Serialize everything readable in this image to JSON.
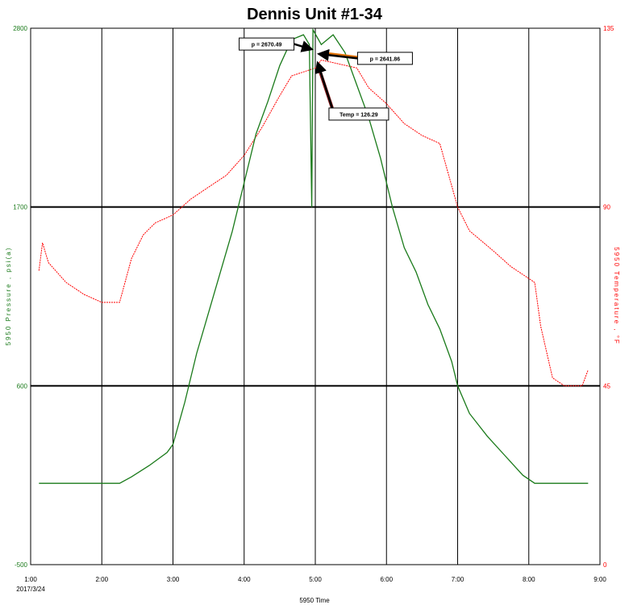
{
  "chart_data": {
    "type": "line",
    "title": "Dennis Unit #1-34",
    "xlabel": "5950 Time",
    "x_date_label": "2017/3/24",
    "y_left_label": "5950 Pressure , psi(a)",
    "y_right_label": "5950 Temperature , °F",
    "x_range": [
      "1:00",
      "9:00"
    ],
    "x_ticks": [
      "1:00",
      "2:00",
      "3:00",
      "4:00",
      "5:00",
      "6:00",
      "7:00",
      "8:00",
      "9:00"
    ],
    "y_left_range": [
      -500,
      2800
    ],
    "y_left_ticks": [
      "2800",
      "1700",
      "600",
      "-500"
    ],
    "y_right_range": [
      0,
      135
    ],
    "y_right_ticks": [
      "135",
      "90",
      "45",
      "0"
    ],
    "grid": true,
    "colors": {
      "pressure": "#1a7a1a",
      "temperature": "#ff0000",
      "annotation_arrow": "#e07000"
    },
    "series": [
      {
        "axis": "left",
        "points": [
          [
            "1:07",
            0
          ],
          [
            "2:15",
            0
          ],
          [
            "2:25",
            40
          ],
          [
            "2:40",
            110
          ],
          [
            "2:55",
            190
          ],
          [
            "3:00",
            240
          ],
          [
            "3:10",
            500
          ],
          [
            "3:20",
            800
          ],
          [
            "3:30",
            1050
          ],
          [
            "3:40",
            1300
          ],
          [
            "3:50",
            1550
          ],
          [
            "4:00",
            1850
          ],
          [
            "4:10",
            2150
          ],
          [
            "4:20",
            2350
          ],
          [
            "4:30",
            2570
          ],
          [
            "4:40",
            2730
          ],
          [
            "4:50",
            2760
          ],
          [
            "4:55",
            2700
          ],
          [
            "4:57",
            1700
          ],
          [
            "4:58",
            2790
          ],
          [
            "5:05",
            2700
          ],
          [
            "5:15",
            2760
          ],
          [
            "5:25",
            2650
          ],
          [
            "5:35",
            2450
          ],
          [
            "5:45",
            2250
          ],
          [
            "5:55",
            2000
          ],
          [
            "6:05",
            1700
          ],
          [
            "6:15",
            1450
          ],
          [
            "6:25",
            1300
          ],
          [
            "6:35",
            1100
          ],
          [
            "6:45",
            950
          ],
          [
            "6:55",
            750
          ],
          [
            "7:00",
            600
          ],
          [
            "7:10",
            430
          ],
          [
            "7:25",
            290
          ],
          [
            "7:40",
            170
          ],
          [
            "7:55",
            50
          ],
          [
            "8:05",
            0
          ],
          [
            "8:50",
            0
          ]
        ]
      },
      {
        "axis": "right",
        "points": [
          [
            "1:07",
            74
          ],
          [
            "1:10",
            81
          ],
          [
            "1:15",
            76
          ],
          [
            "1:30",
            71
          ],
          [
            "1:45",
            68
          ],
          [
            "2:00",
            66
          ],
          [
            "2:15",
            66
          ],
          [
            "2:25",
            77
          ],
          [
            "2:35",
            83
          ],
          [
            "2:45",
            86
          ],
          [
            "3:00",
            88
          ],
          [
            "3:15",
            92
          ],
          [
            "3:30",
            95
          ],
          [
            "3:45",
            98
          ],
          [
            "4:00",
            103
          ],
          [
            "4:15",
            110
          ],
          [
            "4:30",
            118
          ],
          [
            "4:40",
            123
          ],
          [
            "4:50",
            124
          ],
          [
            "5:00",
            125
          ],
          [
            "5:05",
            127
          ],
          [
            "5:20",
            126
          ],
          [
            "5:35",
            125
          ],
          [
            "5:45",
            120
          ],
          [
            "6:00",
            116
          ],
          [
            "6:15",
            111
          ],
          [
            "6:30",
            108
          ],
          [
            "6:45",
            106
          ],
          [
            "7:00",
            90
          ],
          [
            "7:10",
            84
          ],
          [
            "7:30",
            79
          ],
          [
            "7:45",
            75
          ],
          [
            "8:00",
            72
          ],
          [
            "8:05",
            71
          ],
          [
            "8:10",
            60
          ],
          [
            "8:20",
            47
          ],
          [
            "8:30",
            45
          ],
          [
            "8:45",
            45
          ],
          [
            "8:50",
            49
          ]
        ]
      }
    ],
    "annotations": [
      {
        "label": "p = 2670.49",
        "x": "4:57",
        "y": 2670.49,
        "axis": "left"
      },
      {
        "label": "p = 2641.86",
        "x": "5:03",
        "y": 2641.86,
        "axis": "left"
      },
      {
        "label": "Temp = 126.29",
        "x": "5:02",
        "y": 126.29,
        "axis": "right"
      }
    ]
  }
}
